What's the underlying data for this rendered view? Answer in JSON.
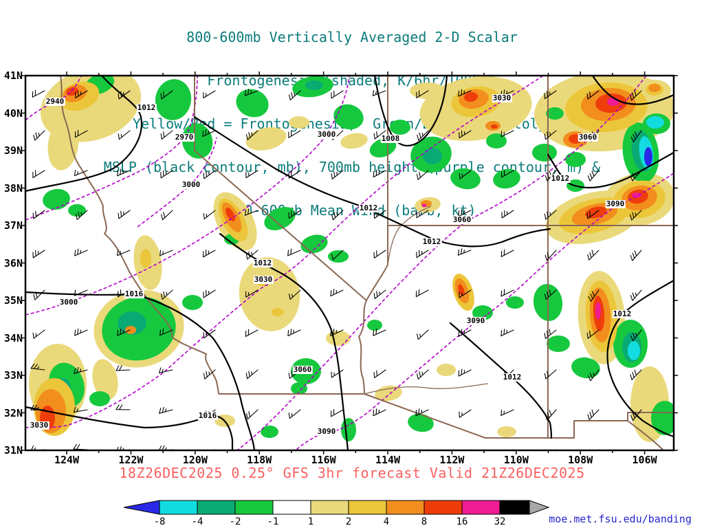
{
  "title": {
    "line1": "800-600mb Vertically Averaged 2-D Scalar",
    "line2": "Frontogenesis (shaded, K/6hr/100km)",
    "line3": "Yellow/Red = Frontogenesis;  Green/Blue = Frontolysis",
    "line4": "MSLP (black contour, mb), 700mb height (purple contour, m) &",
    "line5": "800-600mb Mean Wind (barb, kt)"
  },
  "axes": {
    "lat": [
      "41N",
      "40N",
      "39N",
      "38N",
      "37N",
      "36N",
      "35N",
      "34N",
      "33N",
      "32N",
      "31N"
    ],
    "lon": [
      "124W",
      "122W",
      "120W",
      "118W",
      "116W",
      "114W",
      "112W",
      "110W",
      "108W",
      "106W"
    ]
  },
  "labels": {
    "mslp": [
      "1012",
      "1008",
      "1012",
      "1012",
      "1012",
      "1012",
      "1016",
      "1012",
      "1012",
      "1016"
    ],
    "height": [
      "2940",
      "2970",
      "3000",
      "3000",
      "3000",
      "3030",
      "3030",
      "3030",
      "3060",
      "3060",
      "3060",
      "3090",
      "3090",
      "3090"
    ]
  },
  "footer": {
    "forecast": "18Z26DEC2025 0.25° GFS 3hr forecast Valid 21Z26DEC2025",
    "credit": "moe.met.fsu.edu/banding"
  },
  "colorbar": {
    "ticks": [
      "-8",
      "-4",
      "-2",
      "-1",
      "1",
      "2",
      "4",
      "8",
      "16",
      "32"
    ],
    "units": "K/6hr/100km"
  },
  "palette": {
    "blue": "#2a2ae6",
    "cyan": "#12dce0",
    "teal": "#0aaa74",
    "green": "#16c83e",
    "white": "#ffffff",
    "pale_yellow": "#ead97a",
    "gold": "#ecc63a",
    "orange": "#f28e1e",
    "red": "#ef3d0a",
    "magenta": "#ef1c93",
    "black": "#000000",
    "gray": "#a8a8a8",
    "purple_contour": "#b400cc",
    "mslp_contour": "#000000",
    "state_border": "#8a6752",
    "title_teal": "#0c7b7b",
    "caption_red": "#f96060",
    "credit_blue": "#2525d0"
  },
  "wind_barbs": {
    "symbol": "wind-barb",
    "prevailing_direction": "southwesterly",
    "speed_range_kt": "10-30"
  }
}
